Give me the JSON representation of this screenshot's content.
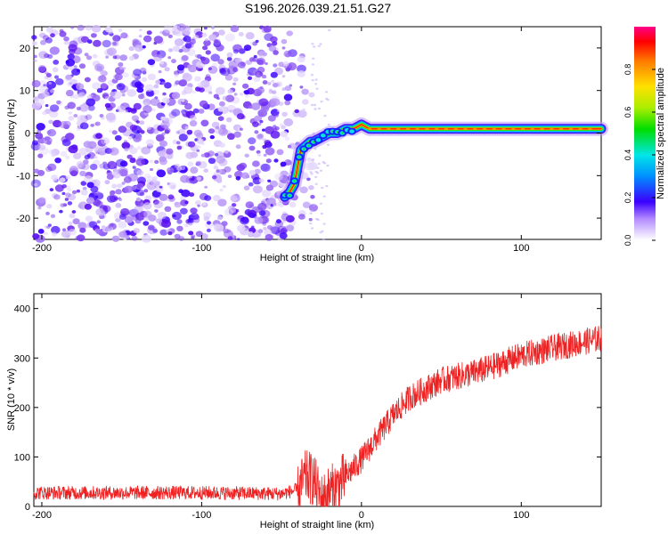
{
  "title": "S196.2026.039.21.51.G27",
  "chart_data": [
    {
      "type": "heatmap",
      "xlabel": "Height of straight line (km)",
      "ylabel": "Frequency (Hz)",
      "xlim": [
        -205,
        150
      ],
      "ylim": [
        -25,
        25
      ],
      "xticks": [
        -200,
        -100,
        0,
        100
      ],
      "yticks": [
        -20,
        -10,
        0,
        10,
        20
      ],
      "trace": {
        "x": [
          -48,
          -45,
          -42,
          -40,
          -38,
          -35,
          -32,
          -30,
          -25,
          -20,
          -15,
          -10,
          -5,
          0,
          5,
          10,
          20,
          40,
          60,
          80,
          90,
          100,
          120,
          140,
          150
        ],
        "frequency": [
          -15,
          -14,
          -12,
          -8,
          -4,
          -3,
          -2,
          -2,
          -1,
          0,
          0,
          1,
          1,
          2,
          1,
          1,
          1,
          1,
          1,
          1,
          1,
          1,
          1,
          1,
          1
        ]
      },
      "noise_region_x": [
        -205,
        -30
      ]
    },
    {
      "type": "colorbar",
      "label": "Normalized spectral amplitude",
      "range": [
        0.0,
        1.0
      ],
      "ticks": [
        0.0,
        0.2,
        0.4,
        0.6,
        0.8
      ],
      "tick_labels": [
        "0.0",
        "0.2",
        "0.4",
        "0.6",
        "0.8"
      ]
    },
    {
      "type": "line",
      "xlabel": "Height of straight line (km)",
      "ylabel": "SNR (10 * v/v)",
      "xlim": [
        -205,
        150
      ],
      "ylim": [
        0,
        430
      ],
      "xticks": [
        -200,
        -100,
        0,
        100
      ],
      "yticks": [
        0,
        100,
        200,
        300,
        400
      ],
      "color": "#ee2222",
      "series_envelope": {
        "x": [
          -205,
          -150,
          -100,
          -50,
          -40,
          -35,
          -30,
          -25,
          -20,
          -15,
          -10,
          0,
          10,
          20,
          30,
          50,
          70,
          80,
          100,
          120,
          150
        ],
        "y": [
          22,
          22,
          22,
          20,
          28,
          60,
          55,
          12,
          30,
          40,
          60,
          95,
          140,
          185,
          220,
          255,
          270,
          280,
          305,
          320,
          340
        ]
      }
    }
  ]
}
